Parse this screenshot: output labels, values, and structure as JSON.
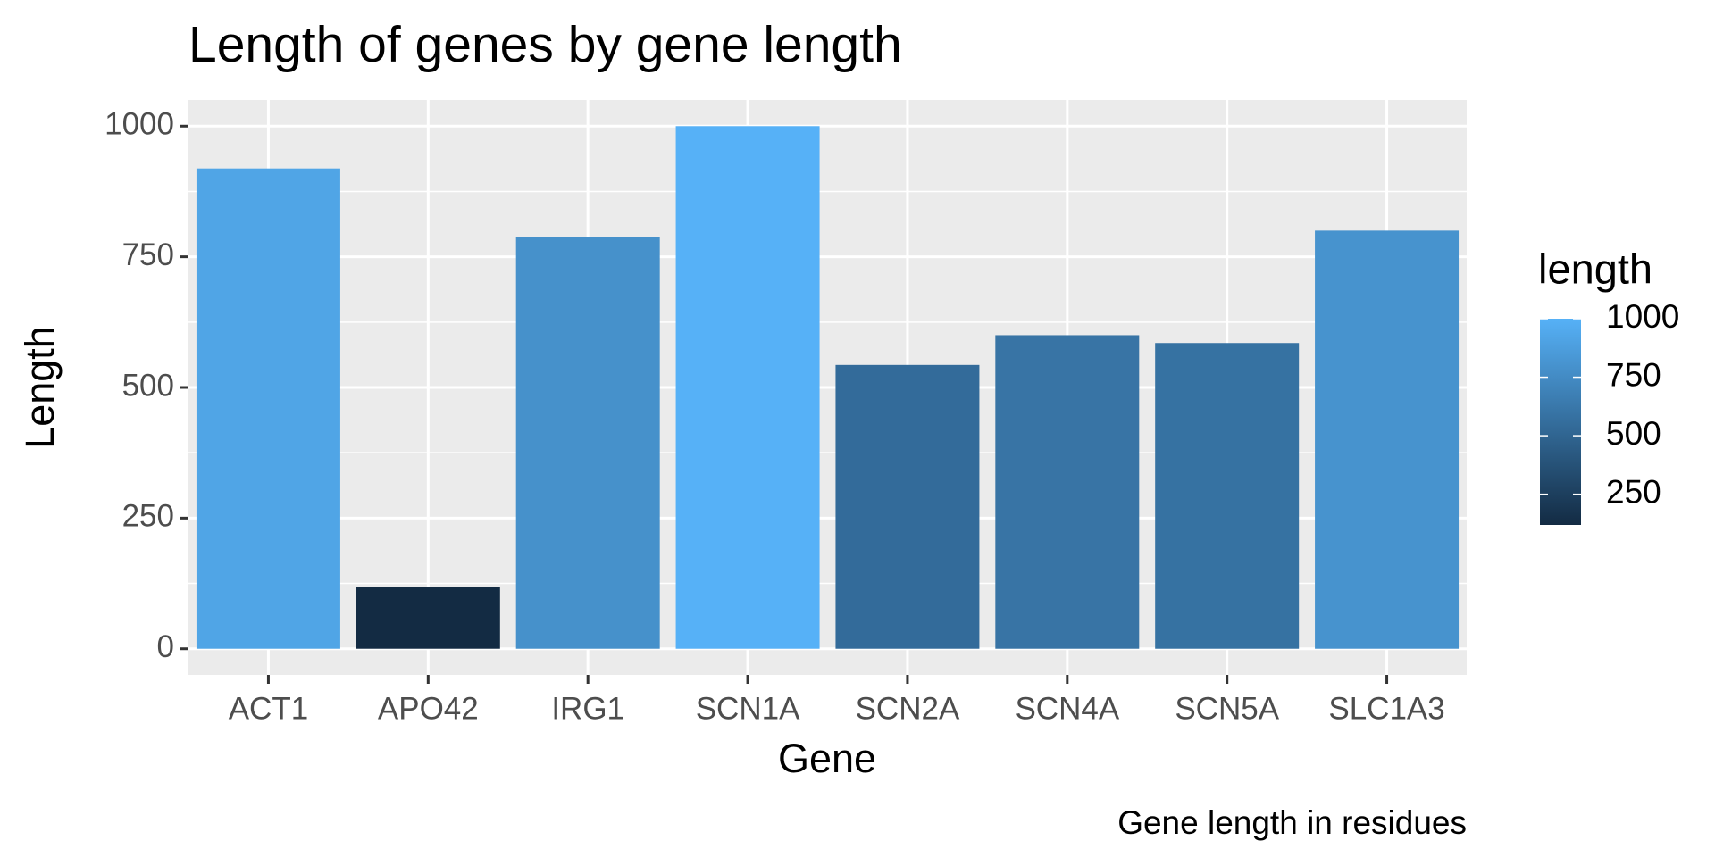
{
  "chart_data": {
    "type": "bar",
    "title": "Length of genes by gene length",
    "x_label": "Gene",
    "y_label": "Length",
    "caption": "Gene length in residues",
    "categories": [
      "ACT1",
      "APO42",
      "IRG1",
      "SCN1A",
      "SCN2A",
      "SCN4A",
      "SCN5A",
      "SLC1A3"
    ],
    "values": [
      919,
      119,
      787,
      1000,
      543,
      600,
      585,
      800
    ],
    "ylim": [
      -50,
      1050
    ],
    "yticks": [
      0,
      250,
      500,
      750,
      1000
    ],
    "grid": true,
    "color_scale": {
      "low": "#132B43",
      "high": "#56B1F7"
    },
    "legend": {
      "title": "length",
      "ticks": [
        250,
        500,
        750,
        1000
      ],
      "position": "right"
    }
  }
}
